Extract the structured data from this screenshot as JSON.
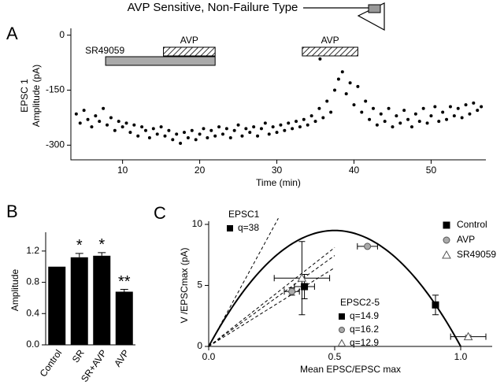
{
  "title": "AVP Sensitive, Non-Failure Type",
  "chart_data": [
    {
      "type": "scatter",
      "panel": "A",
      "ylabel": [
        "EPSC 1",
        "Amplitude (pA)"
      ],
      "xlabel": "Time (min)",
      "xlim": [
        3.3,
        57.1
      ],
      "xticks": [
        10,
        20,
        30,
        40,
        50
      ],
      "ylim": [
        -340,
        10
      ],
      "yticks": [
        0,
        -150,
        -300
      ],
      "color": "#000000",
      "treatments": [
        {
          "label": "SR49059",
          "start": 7.8,
          "end": 22,
          "style": "solid"
        },
        {
          "label": "AVP",
          "start": 15.3,
          "end": 22,
          "style": "hatched"
        },
        {
          "label": "AVP",
          "start": 33.3,
          "end": 40.5,
          "style": "hatched"
        }
      ],
      "x": [
        4,
        4.5,
        5,
        5.5,
        6,
        6.5,
        7,
        7.5,
        8,
        8.5,
        9,
        9.5,
        10,
        10.5,
        11,
        11.5,
        12,
        12.5,
        13,
        13.5,
        14,
        14.5,
        15,
        15.5,
        16,
        16.5,
        17,
        17.5,
        18,
        18.5,
        19,
        19.5,
        20,
        20.5,
        21,
        21.5,
        22,
        22.5,
        23,
        23.5,
        24,
        24.5,
        25,
        25.5,
        26,
        26.5,
        27,
        27.5,
        28,
        28.5,
        29,
        29.5,
        30,
        30.5,
        31,
        31.5,
        32,
        32.5,
        33,
        33.5,
        34,
        34.5,
        35,
        35.5,
        36,
        36.5,
        37,
        37.5,
        38,
        38.5,
        39,
        39.5,
        40,
        40.5,
        41,
        41.5,
        42,
        42.5,
        43,
        43.5,
        44,
        44.5,
        45,
        45.5,
        46,
        46.5,
        47,
        47.5,
        48,
        48.5,
        49,
        49.5,
        50,
        50.5,
        51,
        51.5,
        52,
        52.5,
        53,
        53.5,
        54,
        54.5,
        55,
        55.5,
        56,
        56.5,
        35.6
      ],
      "y": [
        -215,
        -240,
        -205,
        -230,
        -250,
        -220,
        -235,
        -200,
        -245,
        -225,
        -260,
        -235,
        -250,
        -240,
        -265,
        -245,
        -275,
        -250,
        -260,
        -280,
        -255,
        -270,
        -250,
        -275,
        -260,
        -285,
        -270,
        -295,
        -265,
        -280,
        -260,
        -285,
        -270,
        -255,
        -280,
        -260,
        -275,
        -250,
        -270,
        -255,
        -280,
        -260,
        -245,
        -275,
        -255,
        -265,
        -250,
        -275,
        -255,
        -240,
        -270,
        -250,
        -265,
        -245,
        -260,
        -240,
        -255,
        -235,
        -250,
        -230,
        -245,
        -220,
        -235,
        -200,
        -225,
        -180,
        -210,
        -150,
        -120,
        -100,
        -160,
        -130,
        -190,
        -140,
        -210,
        -180,
        -230,
        -200,
        -245,
        -215,
        -235,
        -200,
        -250,
        -220,
        -240,
        -205,
        -230,
        -250,
        -215,
        -235,
        -200,
        -240,
        -220,
        -195,
        -235,
        -210,
        -230,
        -195,
        -220,
        -200,
        -225,
        -190,
        -215,
        -185,
        -205,
        -195,
        -65
      ]
    },
    {
      "type": "bar",
      "panel": "B",
      "ylabel": "Amplitude",
      "categories": [
        "Control",
        "SR",
        "SR+AVP",
        "AVP"
      ],
      "values": [
        1.0,
        1.12,
        1.14,
        0.68
      ],
      "errors": [
        0,
        0.05,
        0.04,
        0.03
      ],
      "significance": [
        null,
        "*",
        "*",
        "**"
      ],
      "color": "#000000",
      "ylim": [
        0,
        1.4
      ],
      "yticks": [
        {
          "value": 0,
          "label": "0.0"
        },
        0.4,
        0.8,
        1.2
      ]
    },
    {
      "type": "scatter",
      "panel": "C",
      "xlabel": "Mean EPSC/EPSC max",
      "ylabel": "V /EPSCmax (pA)",
      "xlim": [
        0,
        1.125
      ],
      "xticks": [
        {
          "value": 0,
          "label": "0.0"
        },
        0.5,
        {
          "value": 1,
          "label": "1.0"
        }
      ],
      "ylim": [
        0,
        10
      ],
      "yticks": [
        0,
        5,
        10
      ],
      "series": [
        {
          "name": "Control",
          "color": "#000000",
          "marker": "square",
          "x": [
            0.9,
            0.38
          ],
          "y": [
            3.4,
            4.9
          ],
          "xerr": [
            0,
            0.04
          ],
          "yerr": [
            0.8,
            1.0
          ]
        },
        {
          "name": "AVP",
          "color": "#aaaaaa",
          "marker": "circle",
          "x": [
            0.63,
            0.33
          ],
          "y": [
            8.2,
            4.5
          ],
          "xerr": [
            0.04,
            0.03
          ],
          "yerr": [
            0.1,
            0.3
          ]
        },
        {
          "name": "SR49059",
          "color": "#ffffff",
          "marker": "triangle",
          "x": [
            1.03,
            0.37
          ],
          "y": [
            0.8,
            5.6
          ],
          "xerr": [
            0.07,
            0.11
          ],
          "yerr": [
            0.1,
            3.0
          ]
        }
      ],
      "fit_groups": [
        {
          "title": "EPSC1",
          "fits": [
            {
              "label": "q=38",
              "q": 38,
              "marker": "square",
              "parabola": true
            }
          ]
        },
        {
          "title": "EPSC2-5",
          "fits": [
            {
              "label": "q=14.9",
              "q": 14.9,
              "marker": "square"
            },
            {
              "label": "q=16.2",
              "q": 16.2,
              "marker": "circle"
            },
            {
              "label": "q=12.9",
              "q": 12.9,
              "marker": "triangle"
            }
          ]
        }
      ]
    }
  ]
}
